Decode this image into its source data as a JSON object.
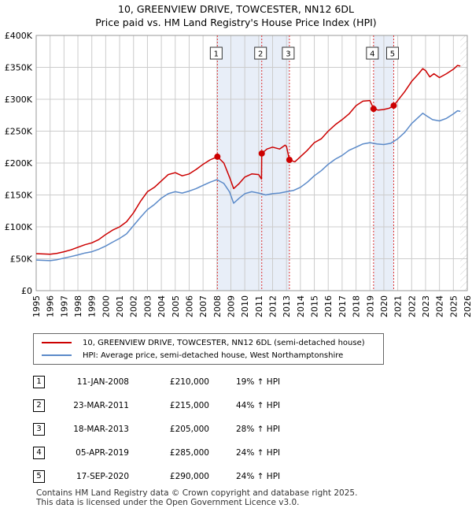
{
  "header": {
    "title_line1": "10, GREENVIEW DRIVE, TOWCESTER, NN12 6DL",
    "title_line2": "Price paid vs. HM Land Registry's House Price Index (HPI)"
  },
  "colors": {
    "property": "#cc0000",
    "hpi": "#5b8ac9",
    "shade": "#e8eef8",
    "grid": "#cccccc",
    "marker_line": "#dd3333"
  },
  "chart_data": {
    "type": "line",
    "title": "10, GREENVIEW DRIVE, TOWCESTER, NN12 6DL — Price paid vs. HM Land Registry's House Price Index (HPI)",
    "xlim": [
      1995,
      2026
    ],
    "ylim": [
      0,
      400000
    ],
    "x_ticks": [
      "1995",
      "1996",
      "1997",
      "1998",
      "1999",
      "2000",
      "2001",
      "2002",
      "2003",
      "2004",
      "2005",
      "2006",
      "2007",
      "2008",
      "2009",
      "2010",
      "2011",
      "2012",
      "2013",
      "2014",
      "2015",
      "2016",
      "2017",
      "2018",
      "2019",
      "2020",
      "2021",
      "2022",
      "2023",
      "2024",
      "2025",
      "2026"
    ],
    "y_ticks": [
      {
        "value": 0,
        "label": "£0"
      },
      {
        "value": 50000,
        "label": "£50K"
      },
      {
        "value": 100000,
        "label": "£100K"
      },
      {
        "value": 150000,
        "label": "£150K"
      },
      {
        "value": 200000,
        "label": "£200K"
      },
      {
        "value": 250000,
        "label": "£250K"
      },
      {
        "value": 300000,
        "label": "£300K"
      },
      {
        "value": 350000,
        "label": "£350K"
      },
      {
        "value": 400000,
        "label": "£400K"
      }
    ],
    "shaded_ranges": [
      [
        2008.03,
        2013.21
      ],
      [
        2019.26,
        2020.71
      ]
    ],
    "future_hatch_from": 2025.5,
    "series": [
      {
        "name": "10, GREENVIEW DRIVE, TOWCESTER, NN12 6DL (semi-detached house)",
        "color": "#cc0000",
        "points": [
          [
            1995.0,
            58000
          ],
          [
            1995.5,
            57500
          ],
          [
            1996.0,
            57000
          ],
          [
            1996.5,
            58500
          ],
          [
            1997.0,
            61000
          ],
          [
            1997.5,
            64000
          ],
          [
            1998.0,
            68000
          ],
          [
            1998.5,
            72000
          ],
          [
            1999.0,
            75000
          ],
          [
            1999.5,
            80000
          ],
          [
            2000.0,
            88000
          ],
          [
            2000.5,
            95000
          ],
          [
            2001.0,
            100000
          ],
          [
            2001.5,
            108000
          ],
          [
            2002.0,
            122000
          ],
          [
            2002.5,
            140000
          ],
          [
            2003.0,
            155000
          ],
          [
            2003.5,
            162000
          ],
          [
            2004.0,
            172000
          ],
          [
            2004.5,
            182000
          ],
          [
            2005.0,
            185000
          ],
          [
            2005.5,
            180000
          ],
          [
            2006.0,
            183000
          ],
          [
            2006.5,
            190000
          ],
          [
            2007.0,
            198000
          ],
          [
            2007.5,
            205000
          ],
          [
            2008.03,
            210000
          ],
          [
            2008.5,
            200000
          ],
          [
            2008.9,
            178000
          ],
          [
            2009.2,
            160000
          ],
          [
            2009.6,
            168000
          ],
          [
            2010.0,
            178000
          ],
          [
            2010.5,
            183000
          ],
          [
            2011.0,
            182000
          ],
          [
            2011.2,
            175000
          ],
          [
            2011.22,
            215000
          ],
          [
            2011.6,
            222000
          ],
          [
            2012.0,
            225000
          ],
          [
            2012.5,
            222000
          ],
          [
            2012.9,
            228000
          ],
          [
            2013.0,
            226000
          ],
          [
            2013.21,
            205000
          ],
          [
            2013.6,
            202000
          ],
          [
            2014.0,
            210000
          ],
          [
            2014.5,
            220000
          ],
          [
            2015.0,
            232000
          ],
          [
            2015.5,
            238000
          ],
          [
            2016.0,
            250000
          ],
          [
            2016.5,
            260000
          ],
          [
            2017.0,
            268000
          ],
          [
            2017.5,
            277000
          ],
          [
            2018.0,
            290000
          ],
          [
            2018.5,
            297000
          ],
          [
            2019.0,
            298000
          ],
          [
            2019.26,
            285000
          ],
          [
            2019.6,
            283000
          ],
          [
            2020.0,
            284000
          ],
          [
            2020.4,
            286000
          ],
          [
            2020.71,
            290000
          ],
          [
            2021.0,
            298000
          ],
          [
            2021.5,
            312000
          ],
          [
            2022.0,
            328000
          ],
          [
            2022.5,
            340000
          ],
          [
            2022.8,
            348000
          ],
          [
            2023.0,
            345000
          ],
          [
            2023.3,
            335000
          ],
          [
            2023.6,
            340000
          ],
          [
            2024.0,
            334000
          ],
          [
            2024.5,
            340000
          ],
          [
            2025.0,
            347000
          ],
          [
            2025.3,
            353000
          ],
          [
            2025.5,
            352000
          ]
        ]
      },
      {
        "name": "HPI: Average price, semi-detached house, West Northamptonshire",
        "color": "#5b8ac9",
        "points": [
          [
            1995.0,
            48000
          ],
          [
            1995.5,
            47500
          ],
          [
            1996.0,
            47000
          ],
          [
            1996.5,
            48500
          ],
          [
            1997.0,
            51000
          ],
          [
            1997.5,
            53500
          ],
          [
            1998.0,
            56000
          ],
          [
            1998.5,
            59000
          ],
          [
            1999.0,
            61000
          ],
          [
            1999.5,
            65000
          ],
          [
            2000.0,
            70000
          ],
          [
            2000.5,
            76000
          ],
          [
            2001.0,
            82000
          ],
          [
            2001.5,
            89000
          ],
          [
            2002.0,
            102000
          ],
          [
            2002.5,
            115000
          ],
          [
            2003.0,
            127000
          ],
          [
            2003.5,
            135000
          ],
          [
            2004.0,
            145000
          ],
          [
            2004.5,
            152000
          ],
          [
            2005.0,
            155000
          ],
          [
            2005.5,
            153000
          ],
          [
            2006.0,
            156000
          ],
          [
            2006.5,
            160000
          ],
          [
            2007.0,
            165000
          ],
          [
            2007.5,
            170000
          ],
          [
            2008.0,
            174000
          ],
          [
            2008.5,
            168000
          ],
          [
            2008.9,
            155000
          ],
          [
            2009.2,
            137000
          ],
          [
            2009.6,
            145000
          ],
          [
            2010.0,
            152000
          ],
          [
            2010.5,
            155000
          ],
          [
            2011.0,
            153000
          ],
          [
            2011.5,
            150000
          ],
          [
            2012.0,
            152000
          ],
          [
            2012.5,
            153000
          ],
          [
            2013.0,
            155000
          ],
          [
            2013.5,
            157000
          ],
          [
            2014.0,
            162000
          ],
          [
            2014.5,
            170000
          ],
          [
            2015.0,
            180000
          ],
          [
            2015.5,
            188000
          ],
          [
            2016.0,
            198000
          ],
          [
            2016.5,
            206000
          ],
          [
            2017.0,
            212000
          ],
          [
            2017.5,
            220000
          ],
          [
            2018.0,
            225000
          ],
          [
            2018.5,
            230000
          ],
          [
            2019.0,
            232000
          ],
          [
            2019.5,
            230000
          ],
          [
            2020.0,
            229000
          ],
          [
            2020.5,
            231000
          ],
          [
            2021.0,
            238000
          ],
          [
            2021.5,
            248000
          ],
          [
            2022.0,
            262000
          ],
          [
            2022.5,
            272000
          ],
          [
            2022.8,
            278000
          ],
          [
            2023.0,
            275000
          ],
          [
            2023.5,
            268000
          ],
          [
            2024.0,
            266000
          ],
          [
            2024.5,
            270000
          ],
          [
            2025.0,
            277000
          ],
          [
            2025.3,
            282000
          ],
          [
            2025.5,
            281000
          ]
        ]
      }
    ],
    "sales": [
      {
        "num": "1",
        "x": 2008.03,
        "price": 210000
      },
      {
        "num": "2",
        "x": 2011.22,
        "price": 215000
      },
      {
        "num": "3",
        "x": 2013.21,
        "price": 205000
      },
      {
        "num": "4",
        "x": 2019.26,
        "price": 285000
      },
      {
        "num": "5",
        "x": 2020.71,
        "price": 290000
      }
    ]
  },
  "legend": {
    "property_label": "10, GREENVIEW DRIVE, TOWCESTER, NN12 6DL (semi-detached house)",
    "hpi_label": "HPI: Average price, semi-detached house, West Northamptonshire"
  },
  "sales_table": [
    {
      "num": "1",
      "date": "11-JAN-2008",
      "price": "£210,000",
      "hpi": "19% ↑ HPI"
    },
    {
      "num": "2",
      "date": "23-MAR-2011",
      "price": "£215,000",
      "hpi": "44% ↑ HPI"
    },
    {
      "num": "3",
      "date": "18-MAR-2013",
      "price": "£205,000",
      "hpi": "28% ↑ HPI"
    },
    {
      "num": "4",
      "date": "05-APR-2019",
      "price": "£285,000",
      "hpi": "24% ↑ HPI"
    },
    {
      "num": "5",
      "date": "17-SEP-2020",
      "price": "£290,000",
      "hpi": "24% ↑ HPI"
    }
  ],
  "footer": {
    "line1": "Contains HM Land Registry data © Crown copyright and database right 2025.",
    "line2": "This data is licensed under the Open Government Licence v3.0."
  }
}
